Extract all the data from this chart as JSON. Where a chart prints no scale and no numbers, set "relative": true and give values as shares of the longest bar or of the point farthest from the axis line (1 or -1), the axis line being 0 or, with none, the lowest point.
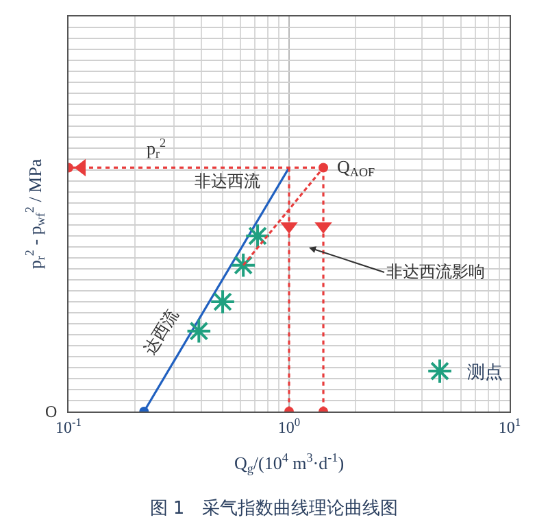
{
  "chart_data": {
    "type": "line",
    "relative": true,
    "log": "x",
    "grid": true,
    "legend": "bottom right",
    "title": "图 1　采气指数曲线理论曲线图",
    "xlabel": "Q$_{g}$/(10$^{4}$ m$^{3}$·d$^{-1}$)",
    "ylabel": "p$_{r}$$^{2}$ - p$_{wf}$$^{2}$ / MPa",
    "xlim": [
      0.1,
      10
    ],
    "xticks": [
      {
        "value": 0.1,
        "label": "10$^{-1}$"
      },
      {
        "value": 1,
        "label": "10$^{0}$"
      },
      {
        "value": 10,
        "label": "10$^{1}$"
      }
    ],
    "series": [
      {
        "color": "#2060c0",
        "line_style": "solid",
        "x": [
          0.22,
          1.0
        ],
        "values": [
          0,
          1
        ]
      },
      {
        "color": "#e83c3c",
        "line_style": "dotted",
        "x": [
          1.43,
          0.115,
          0.1
        ],
        "values": [
          1,
          1,
          1
        ]
      },
      {
        "color": "#e83c3c",
        "line_style": "dotted",
        "x": [
          1.0,
          1.0,
          1.0
        ],
        "values": [
          1,
          0.76,
          0
        ]
      },
      {
        "color": "#e83c3c",
        "line_style": "dotted",
        "x": [
          1.43,
          1.43,
          1.43
        ],
        "values": [
          1,
          0.76,
          0
        ]
      },
      {
        "type": "scatter",
        "color": "#e83c3c",
        "marker": "circle",
        "x": [
          1.43,
          0.1,
          1.0,
          1.43
        ],
        "values": [
          1,
          1,
          0,
          0
        ]
      },
      {
        "type": "scatter",
        "color": "#2060c0",
        "marker": "circle",
        "x": [
          0.22
        ],
        "values": [
          0
        ]
      },
      {
        "type": "scatter",
        "color": "#e83c3c",
        "marker": "triangle",
        "x": [
          0.115,
          1.0,
          1.43
        ],
        "values": [
          1,
          0.76,
          0.76
        ]
      },
      {
        "type": "scatter",
        "name": "测点",
        "color": "#20a080",
        "marker": "cross",
        "x": [
          0.39,
          0.5,
          0.62,
          0.72
        ],
        "values": [
          0.33,
          0.45,
          0.6,
          0.72
        ]
      },
      {
        "color": "#e83c3c",
        "line_style": "dashed",
        "x": [
          0.62,
          1.43
        ],
        "values": [
          0.6,
          1
        ]
      }
    ],
    "annotations": [
      {
        "text": "p$_{r}$$^{2}$",
        "x": 0.25,
        "y": 1
      },
      {
        "text": "Q$_{AOF}$",
        "x": 1.43,
        "y": 1
      },
      "非达西流",
      "达西流",
      "非达西流影响",
      "O"
    ]
  }
}
